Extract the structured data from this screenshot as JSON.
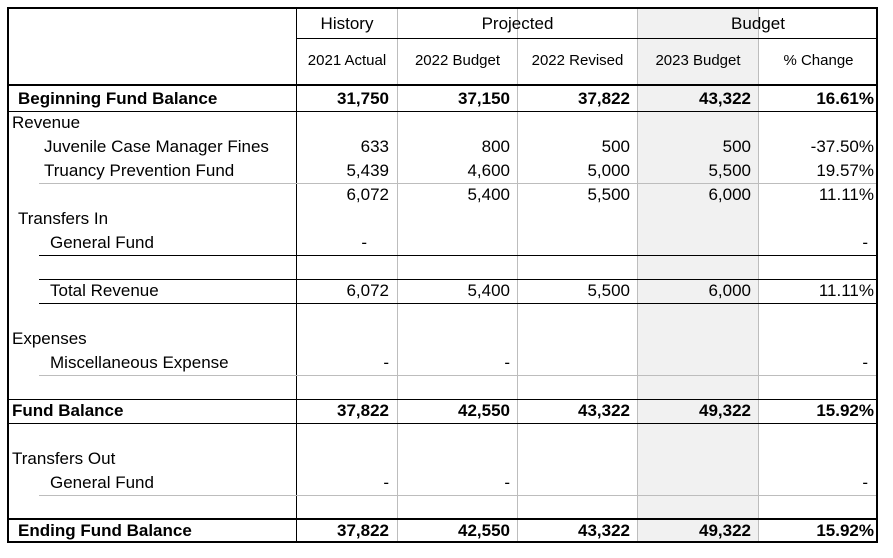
{
  "header": {
    "groups": [
      "History",
      "Projected",
      "Budget"
    ],
    "columns": [
      "2021 Actual",
      "2022 Budget",
      "2022 Revised",
      "2023 Budget",
      "% Change"
    ]
  },
  "rows": {
    "beginning": {
      "label": "Beginning Fund Balance",
      "v": [
        "31,750",
        "37,150",
        "37,822",
        "43,322",
        "16.61%"
      ]
    },
    "revenue": {
      "label": "Revenue"
    },
    "juvenile": {
      "label": "Juvenile Case Manager Fines",
      "v": [
        "633",
        "800",
        "500",
        "500",
        "-37.50%"
      ]
    },
    "truancy": {
      "label": "Truancy Prevention Fund",
      "v": [
        "5,439",
        "4,600",
        "5,000",
        "5,500",
        "19.57%"
      ]
    },
    "subtotal": {
      "v": [
        "6,072",
        "5,400",
        "5,500",
        "6,000",
        "11.11%"
      ]
    },
    "transfers_in": {
      "label": "Transfers In"
    },
    "general_fund_in": {
      "label": "General Fund",
      "v": [
        "-",
        "",
        "",
        "",
        "-"
      ]
    },
    "total_revenue": {
      "label": "Total Revenue",
      "v": [
        "6,072",
        "5,400",
        "5,500",
        "6,000",
        "11.11%"
      ]
    },
    "expenses": {
      "label": "Expenses"
    },
    "misc_expense": {
      "label": "Miscellaneous Expense",
      "v": [
        "-",
        "-",
        "",
        "",
        "-"
      ]
    },
    "fund_balance": {
      "label": "Fund Balance",
      "v": [
        "37,822",
        "42,550",
        "43,322",
        "49,322",
        "15.92%"
      ]
    },
    "transfers_out": {
      "label": "Transfers Out"
    },
    "general_fund_out": {
      "label": "General Fund",
      "v": [
        "-",
        "-",
        "",
        "",
        "-"
      ]
    },
    "ending": {
      "label": "Ending Fund Balance",
      "v": [
        "37,822",
        "42,550",
        "43,322",
        "49,322",
        "15.92%"
      ]
    }
  },
  "colors": {
    "budget_column_shade": "#f1f1f1",
    "grid_line": "#bdbdbd",
    "rule_line": "#000000"
  }
}
